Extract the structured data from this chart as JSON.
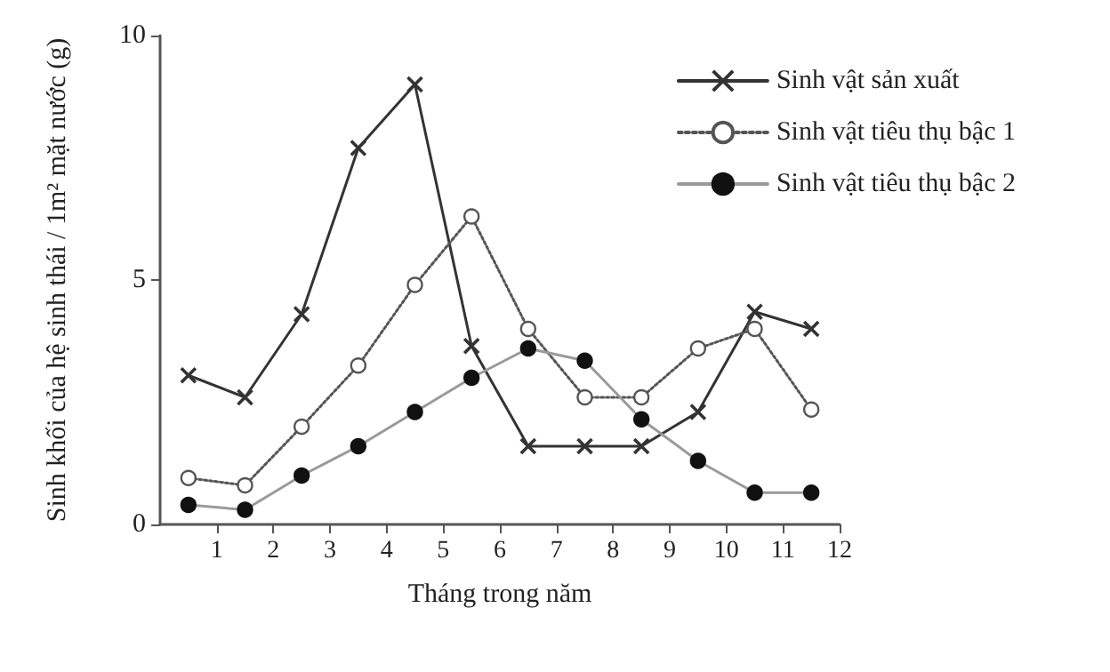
{
  "chart_data": {
    "type": "line",
    "xlabel": "Tháng trong năm",
    "ylabel": "Sinh khối của hệ sinh thái / 1m² mặt nước (g)",
    "x": [
      0.5,
      1.5,
      2.5,
      3.5,
      4.5,
      5.5,
      6.5,
      7.5,
      8.5,
      9.5,
      10.5,
      11.5
    ],
    "series": [
      {
        "name": "Sinh vật sản xuất",
        "color": "#333333",
        "marker": "cross",
        "line_style": "solid",
        "values": [
          3.05,
          2.6,
          4.3,
          7.7,
          9.0,
          3.65,
          1.6,
          1.6,
          1.6,
          2.3,
          4.35,
          4.0
        ]
      },
      {
        "name": "Sinh vật tiêu thụ bậc 1",
        "color": "#555555",
        "marker": "circle",
        "line_style": "dotted",
        "values": [
          0.95,
          0.8,
          2.0,
          3.25,
          4.9,
          6.3,
          4.0,
          2.6,
          2.6,
          3.6,
          4.0,
          2.35
        ]
      },
      {
        "name": "Sinh vật tiêu thụ bậc 2",
        "color": "#9a9a9a",
        "marker": "circle",
        "line_style": "solid",
        "values": [
          0.4,
          0.3,
          1.0,
          1.6,
          2.3,
          3.0,
          3.6,
          3.35,
          2.15,
          1.3,
          0.65,
          0.65
        ]
      }
    ],
    "xlim": [
      0,
      12
    ],
    "xticks": [
      1,
      2,
      3,
      4,
      5,
      6,
      7,
      8,
      9,
      10,
      11,
      12
    ],
    "ylim": [
      0,
      10
    ],
    "yticks": [
      0,
      5,
      10
    ],
    "grid": false,
    "legend": "top right"
  }
}
